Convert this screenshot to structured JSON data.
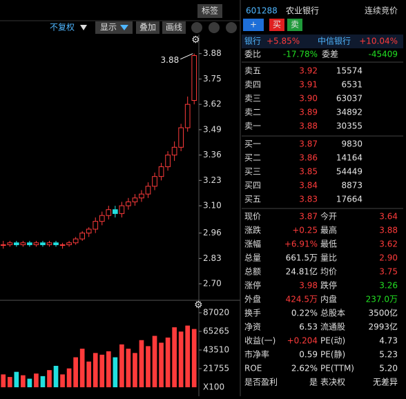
{
  "toolbar": {
    "fq": "不复权",
    "show": "显示",
    "overlay": "叠加",
    "draw": "画线",
    "tag": "标签"
  },
  "header": {
    "code": "601288",
    "name": "农业银行",
    "status": "连续竞价",
    "plus": "+",
    "buy": "买",
    "sell": "卖"
  },
  "sector": {
    "name": "银行",
    "change": "+5.85%",
    "leader": "中信银行",
    "leader_change": "+10.04%"
  },
  "order_ratio": {
    "label": "委比",
    "value": "-17.78%",
    "diff_label": "委差",
    "diff": "-45409"
  },
  "asks": [
    [
      "卖五",
      "3.92",
      "15574"
    ],
    [
      "卖四",
      "3.91",
      "6531"
    ],
    [
      "卖三",
      "3.90",
      "63037"
    ],
    [
      "卖二",
      "3.89",
      "34892"
    ],
    [
      "卖一",
      "3.88",
      "30355"
    ]
  ],
  "bids": [
    [
      "买一",
      "3.87",
      "9830"
    ],
    [
      "买二",
      "3.86",
      "14164"
    ],
    [
      "买三",
      "3.85",
      "54449"
    ],
    [
      "买四",
      "3.84",
      "8873"
    ],
    [
      "买五",
      "3.83",
      "17664"
    ]
  ],
  "stats": [
    [
      "现价",
      "3.87",
      "今开",
      "3.64"
    ],
    [
      "涨跌",
      "+0.25",
      "最高",
      "3.88"
    ],
    [
      "涨幅",
      "+6.91%",
      "最低",
      "3.62"
    ],
    [
      "总量",
      "661.5万",
      "量比",
      "2.90"
    ],
    [
      "总额",
      "24.81亿",
      "均价",
      "3.75"
    ],
    [
      "涨停",
      "3.98",
      "跌停",
      "3.26"
    ],
    [
      "外盘",
      "424.5万",
      "内盘",
      "237.0万"
    ],
    [
      "换手",
      "0.22%",
      "总股本",
      "3500亿"
    ],
    [
      "净资",
      "6.53",
      "流通股",
      "2993亿"
    ],
    [
      "收益(一)",
      "+0.204",
      "PE(动)",
      "4.73"
    ],
    [
      "市净率",
      "0.59",
      "PE(静)",
      "5.23"
    ],
    [
      "ROE",
      "2.62%",
      "PE(TTM)",
      "5.20"
    ],
    [
      "是否盈利",
      "是",
      "表决权",
      "无差异"
    ]
  ],
  "chart_data": [
    {
      "type": "candlestick",
      "annotation": "3.88",
      "open": [
        2.9,
        2.9,
        2.91,
        2.9,
        2.91,
        2.9,
        2.91,
        2.9,
        2.91,
        2.9,
        2.9,
        2.91,
        2.93,
        2.96,
        2.98,
        3.02,
        3.05,
        3.08,
        3.06,
        3.1,
        3.12,
        3.14,
        3.16,
        3.2,
        3.25,
        3.3,
        3.36,
        3.4,
        3.5,
        3.64
      ],
      "high": [
        2.92,
        2.92,
        2.92,
        2.92,
        2.92,
        2.92,
        2.92,
        2.92,
        2.92,
        2.91,
        2.92,
        2.94,
        2.97,
        2.99,
        3.04,
        3.07,
        3.1,
        3.1,
        3.12,
        3.14,
        3.16,
        3.18,
        3.22,
        3.27,
        3.32,
        3.38,
        3.43,
        3.52,
        3.66,
        3.88
      ],
      "low": [
        2.88,
        2.89,
        2.89,
        2.89,
        2.89,
        2.89,
        2.89,
        2.89,
        2.89,
        2.88,
        2.89,
        2.9,
        2.92,
        2.94,
        2.96,
        3.0,
        3.03,
        3.04,
        3.04,
        3.08,
        3.1,
        3.12,
        3.14,
        3.18,
        3.23,
        3.28,
        3.33,
        3.38,
        3.48,
        3.62
      ],
      "close": [
        2.9,
        2.91,
        2.9,
        2.91,
        2.9,
        2.91,
        2.9,
        2.91,
        2.9,
        2.9,
        2.91,
        2.93,
        2.96,
        2.98,
        3.02,
        3.05,
        3.08,
        3.06,
        3.1,
        3.12,
        3.14,
        3.16,
        3.2,
        3.25,
        3.3,
        3.36,
        3.4,
        3.5,
        3.62,
        3.87
      ],
      "ylim": [
        2.626,
        3.978
      ],
      "yticks": [
        3.88,
        3.75,
        3.62,
        3.49,
        3.36,
        3.23,
        {
          "value": 3.1,
          "label": "3.10"
        },
        2.96,
        2.83,
        {
          "value": 2.7,
          "label": "2.70"
        }
      ]
    },
    {
      "type": "bar",
      "unit": "X100",
      "values": [
        15000,
        12000,
        18000,
        14000,
        10000,
        16000,
        13000,
        20000,
        25000,
        15000,
        22000,
        35000,
        45000,
        30000,
        40000,
        38000,
        42000,
        35000,
        50000,
        45000,
        40000,
        55000,
        48000,
        60000,
        52000,
        58000,
        70000,
        65000,
        72000,
        68000
      ],
      "ylim": [
        0,
        97495
      ],
      "yticks": [
        87020,
        65265,
        43510,
        21755
      ]
    }
  ]
}
